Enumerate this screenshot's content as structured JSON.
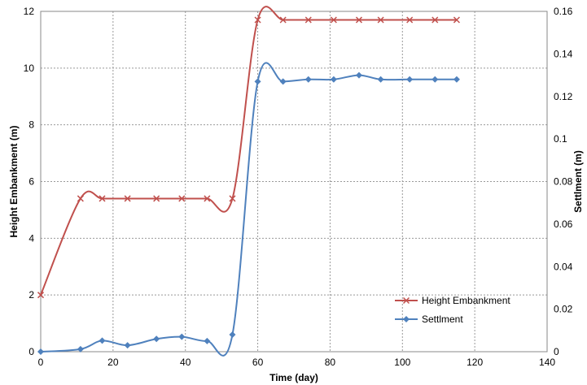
{
  "chart_data": {
    "type": "line",
    "xlabel": "Time (day)",
    "ylabel_left": "Height Embankment (m)",
    "ylabel_right": "Settlment (m)",
    "xlim": [
      0,
      140
    ],
    "x_ticks": [
      0,
      20,
      40,
      60,
      80,
      100,
      120,
      140
    ],
    "ylim_left": [
      0,
      12
    ],
    "y_ticks_left": [
      0,
      2,
      4,
      6,
      8,
      10,
      12
    ],
    "ylim_right": [
      0,
      0.16
    ],
    "y_ticks_right": [
      "0",
      "0.02",
      "0.04",
      "0.06",
      "0.08",
      "0.1",
      "0.12",
      "0.14",
      "0.16"
    ],
    "grid": true,
    "legend_position": "bottom-right",
    "series": [
      {
        "name": "Height Embankment",
        "axis": "left",
        "color": "#C0504D",
        "marker": "x",
        "x": [
          0,
          11,
          17,
          24,
          32,
          39,
          46,
          53,
          60,
          67,
          74,
          81,
          88,
          94,
          102,
          109,
          115
        ],
        "y": [
          2.0,
          5.4,
          5.4,
          5.4,
          5.4,
          5.4,
          5.4,
          5.4,
          11.7,
          11.7,
          11.7,
          11.7,
          11.7,
          11.7,
          11.7,
          11.7,
          11.7
        ]
      },
      {
        "name": "Settlment",
        "axis": "right",
        "color": "#4F81BD",
        "marker": "diamond",
        "x": [
          0,
          11,
          17,
          24,
          32,
          39,
          46,
          53,
          60,
          67,
          74,
          81,
          88,
          94,
          102,
          109,
          115
        ],
        "y": [
          0.0,
          0.0012,
          0.0052,
          0.003,
          0.006,
          0.007,
          0.005,
          0.008,
          0.127,
          0.127,
          0.128,
          0.128,
          0.13,
          0.128,
          0.128,
          0.128,
          0.128
        ]
      }
    ]
  }
}
